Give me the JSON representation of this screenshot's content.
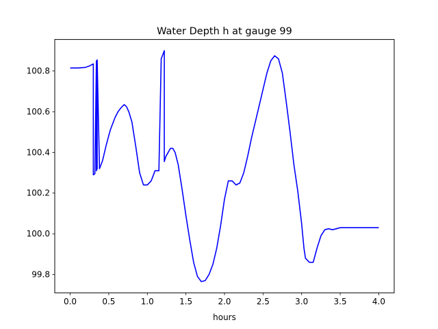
{
  "chart_data": {
    "type": "line",
    "title": "Water Depth h at gauge 99",
    "xlabel": "hours",
    "ylabel": "",
    "xlim": [
      -0.2,
      4.2
    ],
    "ylim": [
      99.71,
      100.955
    ],
    "xticks": [
      0.0,
      0.5,
      1.0,
      1.5,
      2.0,
      2.5,
      3.0,
      3.5,
      4.0
    ],
    "xtick_labels": [
      "0.0",
      "0.5",
      "1.0",
      "1.5",
      "2.0",
      "2.5",
      "3.0",
      "3.5",
      "4.0"
    ],
    "yticks": [
      99.8,
      100.0,
      100.2,
      100.4,
      100.6,
      100.8
    ],
    "ytick_labels": [
      "99.8",
      "100.0",
      "100.2",
      "100.4",
      "100.6",
      "100.8"
    ],
    "grid": false,
    "line_color": "#0000ff",
    "series": [
      {
        "x": [
          0.0,
          0.1,
          0.2,
          0.25,
          0.3,
          0.3,
          0.32,
          0.34,
          0.34,
          0.35,
          0.35,
          0.38,
          0.42,
          0.47,
          0.52,
          0.58,
          0.62,
          0.66,
          0.7,
          0.73,
          0.76,
          0.8,
          0.85,
          0.9,
          0.95,
          1.0,
          1.05,
          1.1,
          1.15,
          1.18,
          1.18,
          1.2,
          1.22,
          1.22,
          1.24,
          1.3,
          1.33,
          1.36,
          1.4,
          1.45,
          1.5,
          1.55,
          1.6,
          1.65,
          1.7,
          1.75,
          1.8,
          1.85,
          1.9,
          1.95,
          2.0,
          2.05,
          2.1,
          2.15,
          2.2,
          2.25,
          2.3,
          2.35,
          2.4,
          2.45,
          2.5,
          2.55,
          2.6,
          2.65,
          2.7,
          2.75,
          2.8,
          2.85,
          2.9,
          2.95,
          3.0,
          3.03,
          3.05,
          3.1,
          3.15,
          3.2,
          3.25,
          3.3,
          3.35,
          3.4,
          3.45,
          3.5,
          3.55,
          3.6,
          3.65,
          3.7,
          3.75,
          3.8,
          3.85,
          3.9,
          3.95,
          4.0
        ],
        "y": [
          100.815,
          100.815,
          100.818,
          100.825,
          100.835,
          100.29,
          100.295,
          100.85,
          100.31,
          100.32,
          100.855,
          100.32,
          100.36,
          100.44,
          100.51,
          100.57,
          100.6,
          100.62,
          100.635,
          100.625,
          100.6,
          100.55,
          100.43,
          100.3,
          100.24,
          100.24,
          100.26,
          100.31,
          100.31,
          100.86,
          100.86,
          100.88,
          100.9,
          100.355,
          100.38,
          100.42,
          100.42,
          100.4,
          100.34,
          100.22,
          100.09,
          99.97,
          99.86,
          99.79,
          99.765,
          99.77,
          99.8,
          99.85,
          99.93,
          100.04,
          100.17,
          100.26,
          100.26,
          100.24,
          100.25,
          100.3,
          100.38,
          100.47,
          100.55,
          100.63,
          100.71,
          100.79,
          100.85,
          100.875,
          100.86,
          100.79,
          100.65,
          100.5,
          100.34,
          100.21,
          100.05,
          99.93,
          99.88,
          99.86,
          99.86,
          99.93,
          99.99,
          100.02,
          100.025,
          100.02,
          100.025,
          100.03,
          100.03,
          100.03,
          100.03,
          100.03,
          100.03,
          100.03,
          100.03,
          100.03,
          100.03,
          100.03
        ]
      }
    ]
  }
}
